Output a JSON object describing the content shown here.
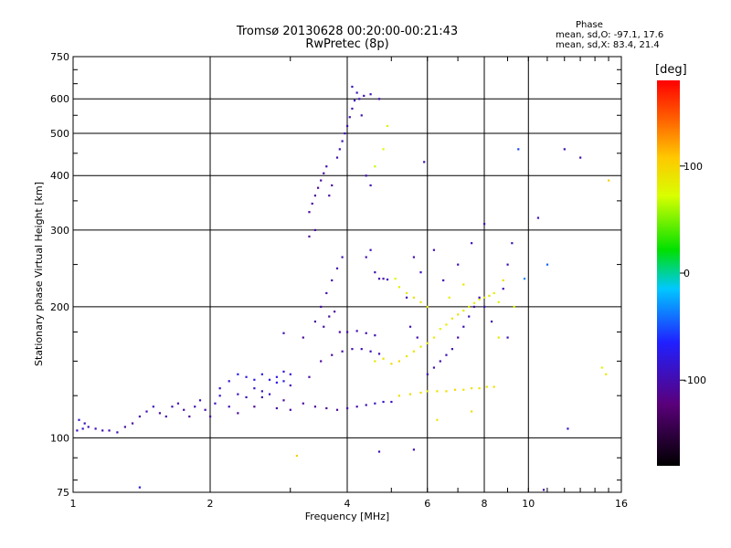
{
  "chart_data": {
    "type": "scatter",
    "title": "Tromsø 20130628 00:20:00-00:21:43",
    "subtitle": "RwPretec (8p)",
    "xlabel": "Frequency [MHz]",
    "ylabel": "Stationary phase Virtual Height [km]",
    "x_scale": "log",
    "y_scale": "log",
    "xlim": [
      1,
      16
    ],
    "ylim": [
      75,
      750
    ],
    "x_ticks": [
      1,
      2,
      4,
      6,
      8,
      10,
      16
    ],
    "y_ticks": [
      75,
      100,
      200,
      300,
      400,
      500,
      600,
      750
    ],
    "x_tick_labels": [
      "1",
      "2",
      "4",
      "6",
      "8",
      "10",
      "16"
    ],
    "y_tick_labels": [
      "75",
      "100",
      "200",
      "300",
      "400",
      "500",
      "600",
      "750"
    ],
    "grid": true,
    "colorbar": {
      "label": "[deg]",
      "ticks": [
        100,
        0,
        -100
      ],
      "tick_labels": [
        "100",
        "0",
        "-100"
      ]
    },
    "phase_stats": {
      "title": "Phase",
      "o_line": "mean, sd,O: -97.1, 17.6",
      "x_line": "mean, sd,X:  83.4, 21.4"
    },
    "series": [
      {
        "points": [
          [
            1.02,
            104,
            -95
          ],
          [
            1.05,
            105,
            -92
          ],
          [
            1.08,
            106,
            -100
          ],
          [
            1.12,
            105,
            -98
          ],
          [
            1.16,
            104,
            -103
          ],
          [
            1.03,
            110,
            -90
          ],
          [
            1.06,
            108,
            -96
          ],
          [
            1.2,
            104,
            -105
          ],
          [
            1.25,
            103,
            -100
          ],
          [
            1.3,
            106,
            -108
          ],
          [
            1.35,
            108,
            -112
          ],
          [
            1.4,
            112,
            -104
          ],
          [
            1.45,
            115,
            -100
          ],
          [
            1.5,
            118,
            -96
          ],
          [
            1.55,
            114,
            -110
          ],
          [
            1.6,
            112,
            -105
          ],
          [
            1.65,
            118,
            -100
          ],
          [
            1.7,
            120,
            -98
          ],
          [
            1.75,
            116,
            -107
          ],
          [
            1.8,
            112,
            -112
          ],
          [
            1.85,
            118,
            -100
          ],
          [
            1.9,
            122,
            -96
          ],
          [
            1.95,
            116,
            -104
          ],
          [
            2.0,
            112,
            -108
          ],
          [
            2.05,
            120,
            -98
          ],
          [
            2.1,
            125,
            -90
          ],
          [
            2.2,
            118,
            -102
          ],
          [
            2.3,
            114,
            -110
          ],
          [
            2.4,
            124,
            -98
          ],
          [
            2.5,
            130,
            -92
          ],
          [
            2.6,
            128,
            -90
          ],
          [
            2.7,
            126,
            -94
          ],
          [
            2.8,
            134,
            -80
          ],
          [
            2.9,
            135,
            -78
          ],
          [
            3.0,
            132,
            -100
          ],
          [
            2.2,
            135,
            -85
          ],
          [
            2.3,
            140,
            -75
          ],
          [
            2.4,
            138,
            -82
          ],
          [
            2.5,
            136,
            -80
          ],
          [
            2.6,
            140,
            -76
          ],
          [
            2.7,
            136,
            -78
          ],
          [
            2.8,
            138,
            -80
          ],
          [
            2.9,
            142,
            -85
          ],
          [
            3.0,
            140,
            -88
          ],
          [
            2.1,
            130,
            -92
          ],
          [
            2.3,
            126,
            -95
          ],
          [
            2.6,
            124,
            -100
          ],
          [
            2.9,
            122,
            -108
          ],
          [
            3.2,
            120,
            -110
          ],
          [
            3.4,
            118,
            -112
          ],
          [
            3.6,
            117,
            -115
          ],
          [
            3.8,
            116,
            -112
          ],
          [
            4.0,
            117,
            -108
          ],
          [
            4.2,
            118,
            -105
          ],
          [
            4.4,
            119,
            -100
          ],
          [
            4.6,
            120,
            -95
          ],
          [
            4.8,
            121,
            -90
          ],
          [
            5.0,
            121,
            -95
          ],
          [
            3.0,
            116,
            -110
          ],
          [
            2.8,
            117,
            -112
          ],
          [
            2.5,
            118,
            -115
          ],
          [
            3.3,
            138,
            -105
          ],
          [
            3.5,
            150,
            -110
          ],
          [
            3.7,
            155,
            -108
          ],
          [
            3.9,
            158,
            -105
          ],
          [
            4.1,
            160,
            -100
          ],
          [
            4.3,
            160,
            -98
          ],
          [
            4.5,
            158,
            -100
          ],
          [
            4.7,
            156,
            -104
          ],
          [
            3.2,
            170,
            -112
          ],
          [
            3.4,
            185,
            -110
          ],
          [
            3.5,
            200,
            -108
          ],
          [
            3.6,
            215,
            -105
          ],
          [
            3.7,
            230,
            -102
          ],
          [
            3.8,
            245,
            -100
          ],
          [
            3.9,
            260,
            -98
          ],
          [
            3.55,
            180,
            -110
          ],
          [
            3.65,
            190,
            -112
          ],
          [
            3.75,
            195,
            -108
          ],
          [
            3.85,
            175,
            -106
          ],
          [
            4.0,
            175,
            -105
          ],
          [
            4.2,
            176,
            -102
          ],
          [
            4.4,
            174,
            -100
          ],
          [
            4.6,
            172,
            -102
          ],
          [
            3.3,
            330,
            -110
          ],
          [
            3.35,
            345,
            -108
          ],
          [
            3.4,
            360,
            -112
          ],
          [
            3.45,
            375,
            -110
          ],
          [
            3.5,
            390,
            -108
          ],
          [
            3.55,
            405,
            -106
          ],
          [
            3.6,
            420,
            -104
          ],
          [
            3.65,
            360,
            -110
          ],
          [
            3.7,
            380,
            -108
          ],
          [
            3.4,
            300,
            -110
          ],
          [
            3.3,
            290,
            -112
          ],
          [
            3.8,
            440,
            -104
          ],
          [
            3.85,
            460,
            -100
          ],
          [
            3.9,
            480,
            -98
          ],
          [
            3.95,
            500,
            -100
          ],
          [
            4.0,
            520,
            -102
          ],
          [
            4.05,
            545,
            -98
          ],
          [
            4.1,
            570,
            -100
          ],
          [
            4.15,
            595,
            -96
          ],
          [
            4.2,
            620,
            -98
          ],
          [
            4.1,
            640,
            -95
          ],
          [
            4.25,
            600,
            -100
          ],
          [
            4.35,
            610,
            -102
          ],
          [
            4.5,
            615,
            -100
          ],
          [
            4.7,
            600,
            -104
          ],
          [
            4.3,
            550,
            -100
          ],
          [
            4.4,
            400,
            -102
          ],
          [
            4.5,
            380,
            -100
          ],
          [
            4.6,
            420,
            60
          ],
          [
            4.8,
            460,
            70
          ],
          [
            4.9,
            520,
            75
          ],
          [
            4.6,
            240,
            -100
          ],
          [
            4.7,
            232,
            -102
          ],
          [
            4.8,
            232,
            -104
          ],
          [
            4.9,
            231,
            -100
          ],
          [
            4.5,
            270,
            -98
          ],
          [
            4.4,
            260,
            -100
          ],
          [
            5.1,
            232,
            70
          ],
          [
            5.2,
            222,
            75
          ],
          [
            5.4,
            215,
            80
          ],
          [
            5.6,
            210,
            85
          ],
          [
            5.8,
            205,
            82
          ],
          [
            6.0,
            200,
            78
          ],
          [
            4.6,
            150,
            80
          ],
          [
            4.8,
            152,
            84
          ],
          [
            5.0,
            148,
            86
          ],
          [
            5.2,
            150,
            88
          ],
          [
            5.4,
            154,
            80
          ],
          [
            5.6,
            158,
            82
          ],
          [
            5.8,
            162,
            78
          ],
          [
            6.0,
            165,
            80
          ],
          [
            6.2,
            170,
            75
          ],
          [
            6.4,
            178,
            70
          ],
          [
            6.6,
            182,
            78
          ],
          [
            6.8,
            188,
            82
          ],
          [
            7.0,
            192,
            85
          ],
          [
            7.2,
            196,
            80
          ],
          [
            7.4,
            200,
            78
          ],
          [
            7.6,
            204,
            72
          ],
          [
            7.8,
            208,
            76
          ],
          [
            8.0,
            210,
            80
          ],
          [
            8.2,
            212,
            82
          ],
          [
            8.4,
            215,
            78
          ],
          [
            8.6,
            205,
            70
          ],
          [
            8.8,
            220,
            -100
          ],
          [
            9.0,
            250,
            -102
          ],
          [
            9.2,
            280,
            -98
          ],
          [
            5.2,
            125,
            85
          ],
          [
            5.5,
            126,
            88
          ],
          [
            5.8,
            127,
            86
          ],
          [
            6.0,
            128,
            82
          ],
          [
            6.3,
            128,
            84
          ],
          [
            6.6,
            128,
            86
          ],
          [
            6.9,
            129,
            88
          ],
          [
            7.2,
            129,
            82
          ],
          [
            7.5,
            130,
            84
          ],
          [
            7.8,
            130,
            80
          ],
          [
            8.1,
            131,
            82
          ],
          [
            8.4,
            131,
            85
          ],
          [
            6.0,
            140,
            -100
          ],
          [
            6.2,
            145,
            -102
          ],
          [
            6.4,
            150,
            -104
          ],
          [
            6.6,
            155,
            -100
          ],
          [
            6.8,
            160,
            -98
          ],
          [
            7.0,
            170,
            -104
          ],
          [
            7.2,
            180,
            -100
          ],
          [
            7.4,
            190,
            -98
          ],
          [
            7.6,
            200,
            -102
          ],
          [
            7.8,
            210,
            -100
          ],
          [
            8.0,
            200,
            -96
          ],
          [
            8.3,
            185,
            -100
          ],
          [
            6.5,
            230,
            -104
          ],
          [
            7.0,
            250,
            -100
          ],
          [
            7.5,
            280,
            -98
          ],
          [
            8.0,
            310,
            -102
          ],
          [
            9.0,
            170,
            -100
          ],
          [
            5.6,
            260,
            -100
          ],
          [
            5.8,
            240,
            -98
          ],
          [
            5.4,
            210,
            -104
          ],
          [
            5.5,
            180,
            -100
          ],
          [
            5.7,
            170,
            -102
          ],
          [
            9.5,
            460,
            -60
          ],
          [
            12.0,
            460,
            -100
          ],
          [
            13.0,
            440,
            -104
          ],
          [
            15.0,
            390,
            95
          ],
          [
            12.2,
            105,
            -90
          ],
          [
            14.5,
            145,
            70
          ],
          [
            14.8,
            140,
            80
          ],
          [
            10.5,
            320,
            -98
          ],
          [
            11.0,
            250,
            -50
          ],
          [
            3.1,
            91,
            95
          ],
          [
            4.7,
            93,
            -100
          ],
          [
            5.6,
            94,
            -100
          ],
          [
            6.3,
            110,
            80
          ],
          [
            7.5,
            115,
            85
          ],
          [
            8.6,
            170,
            80
          ],
          [
            10.8,
            76,
            -100
          ],
          [
            1.4,
            77,
            -80
          ],
          [
            2.9,
            174,
            -100
          ],
          [
            5.9,
            430,
            -102
          ],
          [
            6.2,
            270,
            -98
          ],
          [
            7.2,
            225,
            82
          ],
          [
            9.8,
            232,
            -40
          ],
          [
            9.3,
            200,
            70
          ],
          [
            8.8,
            230,
            90
          ],
          [
            6.7,
            210,
            75
          ]
        ]
      }
    ]
  }
}
